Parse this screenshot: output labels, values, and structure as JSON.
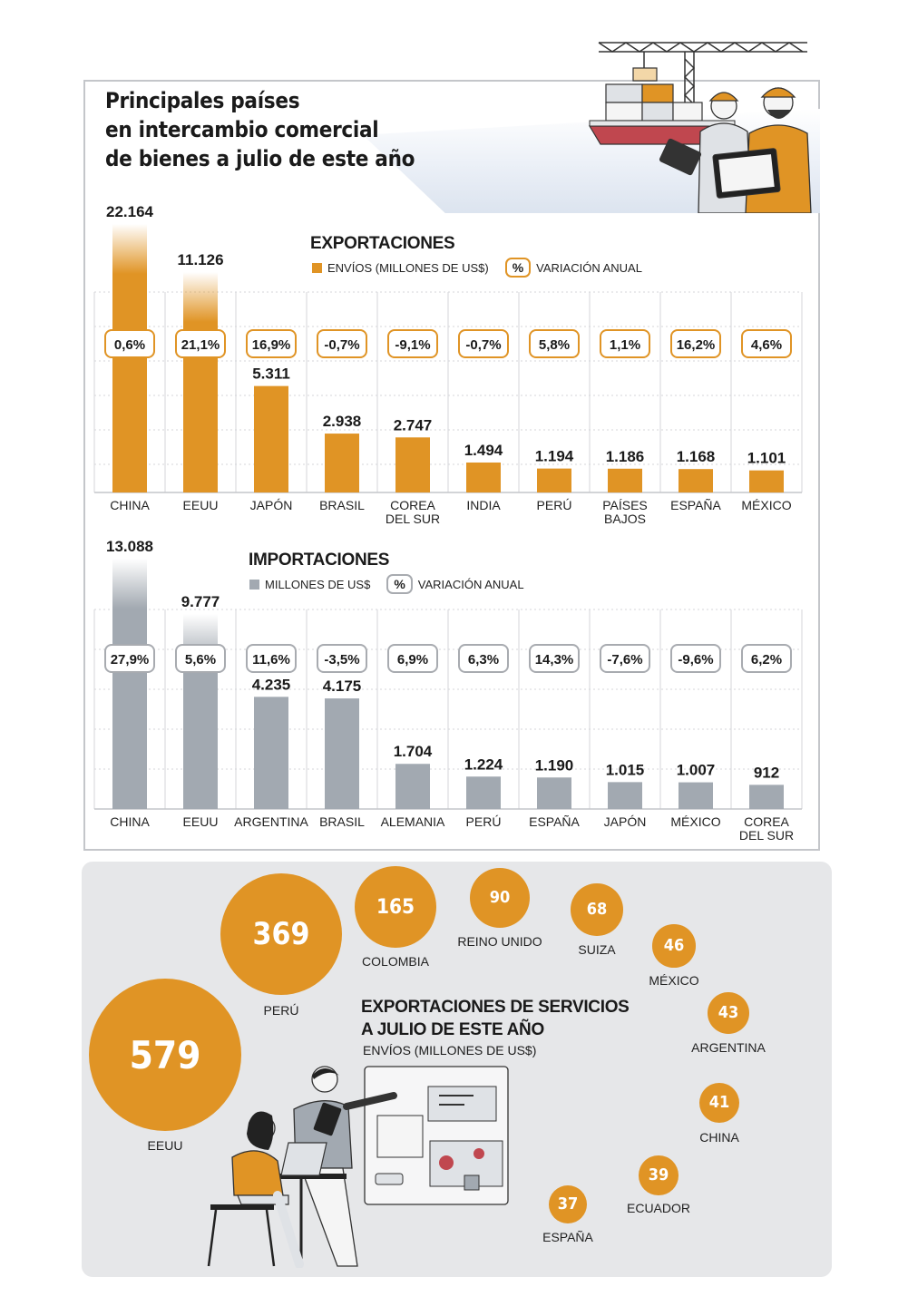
{
  "header": {
    "title_lines": [
      "Principales países",
      "en intercambio comercial",
      "de bienes a julio de este año"
    ]
  },
  "exports": {
    "title": "EXPORTACIONES",
    "legend_value": "ENVÍOS (MILLONES DE US$)",
    "legend_pct_symbol": "%",
    "legend_pct": "VARIACIÓN ANUAL"
  },
  "imports": {
    "title": "IMPORTACIONES",
    "legend_value": "MILLONES DE US$",
    "legend_pct_symbol": "%",
    "legend_pct": "VARIACIÓN ANUAL"
  },
  "services": {
    "title_lines": [
      "EXPORTACIONES DE SERVICIOS",
      "A JULIO DE ESTE AÑO"
    ],
    "subtitle": "ENVÍOS (MILLONES DE US$)",
    "items": [
      {
        "country": "EEUU",
        "value": "579"
      },
      {
        "country": "PERÚ",
        "value": "369"
      },
      {
        "country": "COLOMBIA",
        "value": "165"
      },
      {
        "country": "REINO UNIDO",
        "value": "90"
      },
      {
        "country": "SUIZA",
        "value": "68"
      },
      {
        "country": "MÉXICO",
        "value": "46"
      },
      {
        "country": "ARGENTINA",
        "value": "43"
      },
      {
        "country": "CHINA",
        "value": "41"
      },
      {
        "country": "ECUADOR",
        "value": "39"
      },
      {
        "country": "ESPAÑA",
        "value": "37"
      }
    ]
  },
  "colors": {
    "orange": "#e09425",
    "gray": "#a2a9b1",
    "panel_bg": "#e6e7e9",
    "box_border": "#a8abb0"
  },
  "chart_data": [
    {
      "type": "bar",
      "title": "EXPORTACIONES",
      "categories": [
        "CHINA",
        "EEUU",
        "JAPÓN",
        "BRASIL",
        "COREA\nDEL SUR",
        "INDIA",
        "PERÚ",
        "PAÍSES\nBAJOS",
        "ESPAÑA",
        "MÉXICO"
      ],
      "series": [
        {
          "name": "ENVÍOS (MILLONES DE US$)",
          "values": [
            22164,
            11126,
            5311,
            2938,
            2747,
            1494,
            1194,
            1186,
            1168,
            1101
          ],
          "labels": [
            "22.164",
            "11.126",
            "5.311",
            "2.938",
            "2.747",
            "1.494",
            "1.194",
            "1.186",
            "1.168",
            "1.101"
          ]
        },
        {
          "name": "VARIACIÓN ANUAL",
          "labels": [
            "0,6%",
            "21,1%",
            "16,9%",
            "-0,7%",
            "-9,1%",
            "-0,7%",
            "5,8%",
            "1,1%",
            "16,2%",
            "4,6%"
          ]
        }
      ],
      "color": "#e09425"
    },
    {
      "type": "bar",
      "title": "IMPORTACIONES",
      "categories": [
        "CHINA",
        "EEUU",
        "ARGENTINA",
        "BRASIL",
        "ALEMANIA",
        "PERÚ",
        "ESPAÑA",
        "JAPÓN",
        "MÉXICO",
        "COREA\nDEL SUR"
      ],
      "series": [
        {
          "name": "MILLONES DE US$",
          "values": [
            13088,
            9777,
            4235,
            4175,
            1704,
            1224,
            1190,
            1015,
            1007,
            912
          ],
          "labels": [
            "13.088",
            "9.777",
            "4.235",
            "4.175",
            "1.704",
            "1.224",
            "1.190",
            "1.015",
            "1.007",
            "912"
          ]
        },
        {
          "name": "VARIACIÓN ANUAL",
          "labels": [
            "27,9%",
            "5,6%",
            "11,6%",
            "-3,5%",
            "6,9%",
            "6,3%",
            "14,3%",
            "-7,6%",
            "-9,6%",
            "6,2%"
          ]
        }
      ],
      "color": "#a2a9b1"
    },
    {
      "type": "scatter",
      "title": "EXPORTACIONES DE SERVICIOS A JULIO DE ESTE AÑO",
      "subtitle": "ENVÍOS (MILLONES DE US$)",
      "categories": [
        "EEUU",
        "PERÚ",
        "COLOMBIA",
        "REINO UNIDO",
        "SUIZA",
        "MÉXICO",
        "ARGENTINA",
        "CHINA",
        "ECUADOR",
        "ESPAÑA"
      ],
      "values": [
        579,
        369,
        165,
        90,
        68,
        46,
        43,
        41,
        39,
        37
      ]
    }
  ]
}
